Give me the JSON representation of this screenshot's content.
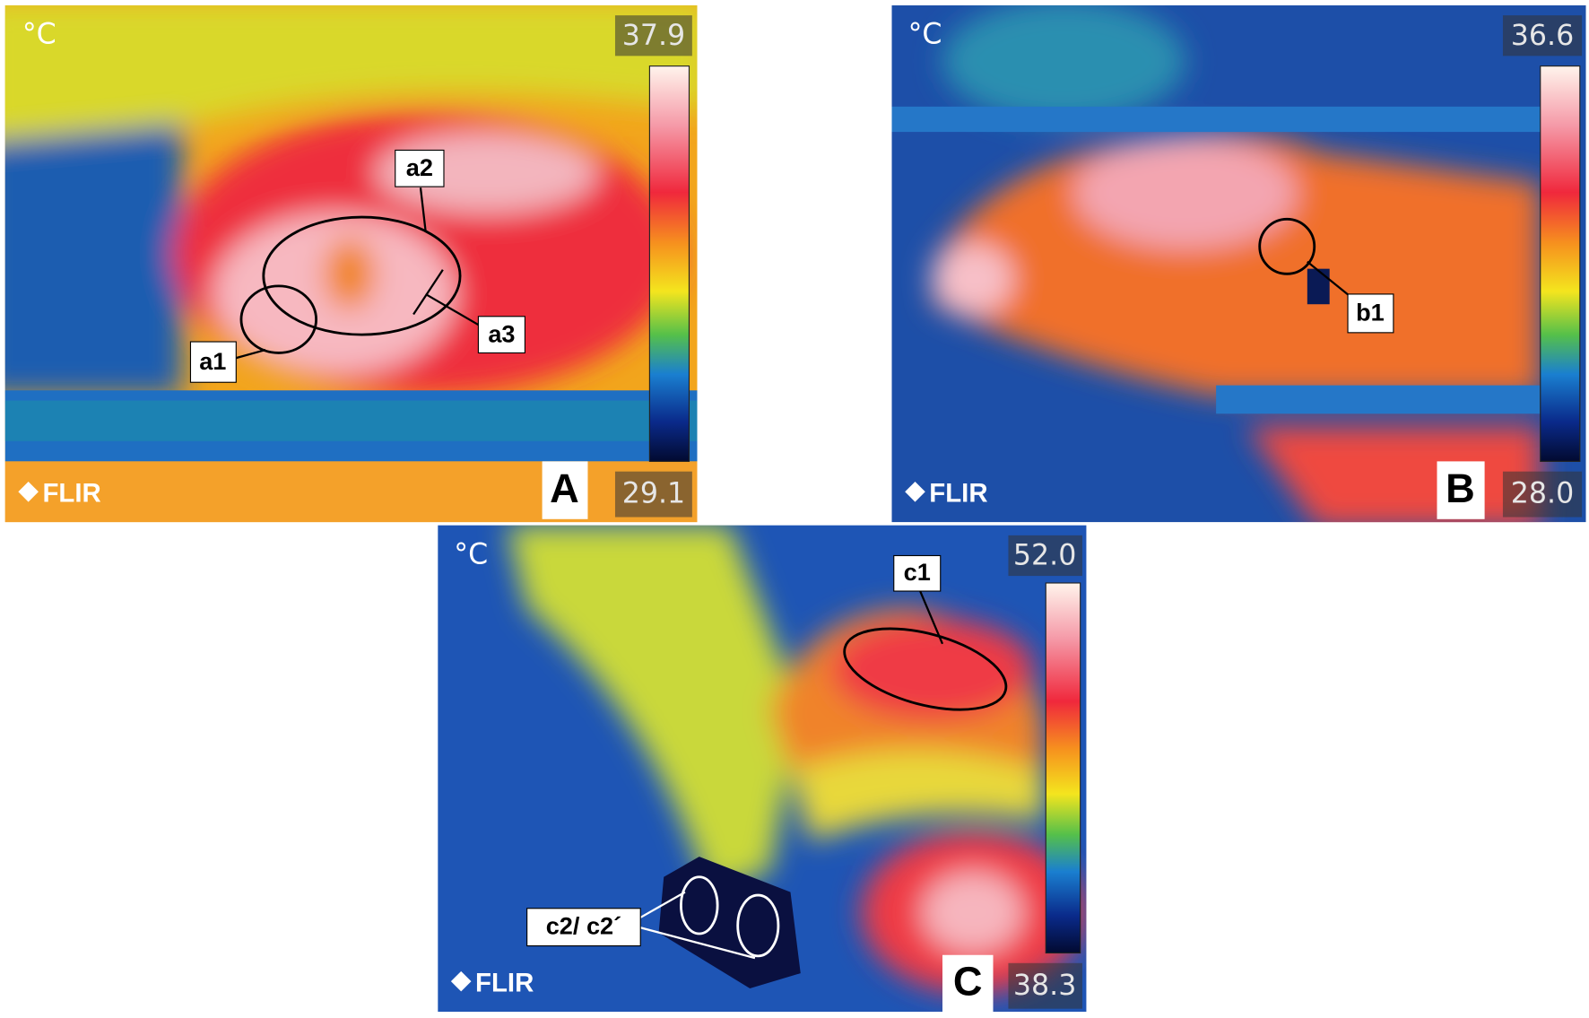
{
  "panels": [
    {
      "unit": "°C",
      "scale_max": "37.9",
      "scale_min": "29.1",
      "brand": "FLIR",
      "letter": "A",
      "annotations": [
        "a1",
        "a2",
        "a3"
      ]
    },
    {
      "unit": "°C",
      "scale_max": "36.6",
      "scale_min": "28.0",
      "brand": "FLIR",
      "letter": "B",
      "annotations": [
        "b1"
      ]
    },
    {
      "unit": "°C",
      "scale_max": "52.0",
      "scale_min": "38.3",
      "brand": "FLIR",
      "letter": "C",
      "annotations": [
        "c1",
        "c2/ c2´"
      ]
    }
  ]
}
